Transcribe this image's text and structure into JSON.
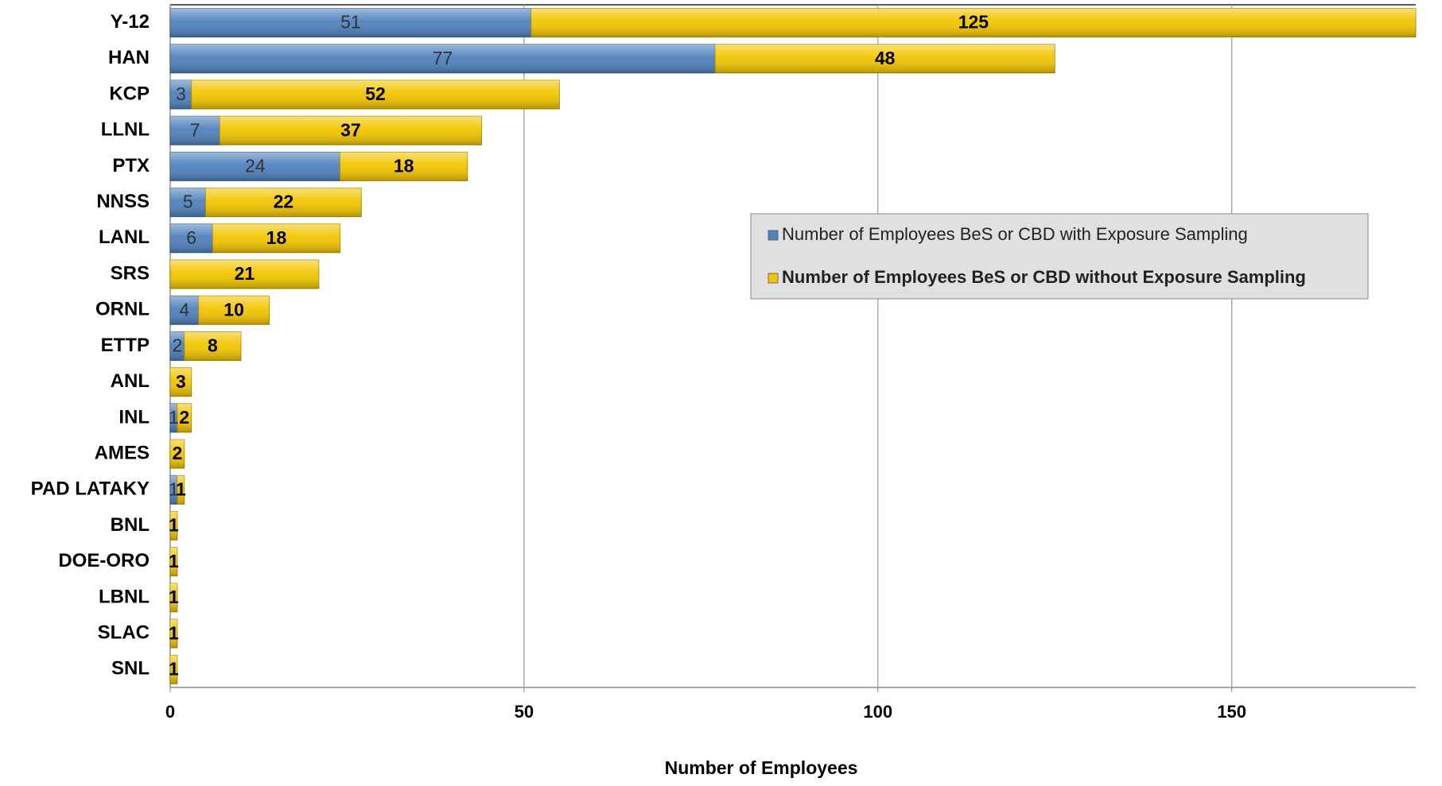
{
  "chart_data": {
    "type": "bar",
    "orientation": "horizontal",
    "stacked": true,
    "x_label": "Number of Employees",
    "categories": [
      "Y-12",
      "HAN",
      "KCP",
      "LLNL",
      "PTX",
      "NNSS",
      "LANL",
      "SRS",
      "ORNL",
      "ETTP",
      "ANL",
      "INL",
      "AMES",
      "PAD LATAKY",
      "BNL",
      "DOE-ORO",
      "LBNL",
      "SLAC",
      "SNL"
    ],
    "series": [
      {
        "name": "Number of Employees BeS or CBD with Exposure Sampling",
        "color": "#4f81bd",
        "values": [
          51,
          77,
          3,
          7,
          24,
          5,
          6,
          null,
          4,
          2,
          null,
          1,
          null,
          1,
          null,
          null,
          null,
          null,
          null
        ]
      },
      {
        "name": "Number of Employees BeS or CBD without Exposure Sampling",
        "color": "#f2c500",
        "values": [
          125,
          48,
          52,
          37,
          18,
          22,
          18,
          21,
          10,
          8,
          3,
          2,
          2,
          1,
          1,
          1,
          1,
          1,
          1
        ]
      }
    ],
    "xlim": [
      0,
      176
    ],
    "xticks": [
      0,
      50,
      100,
      150
    ],
    "grid": true
  }
}
